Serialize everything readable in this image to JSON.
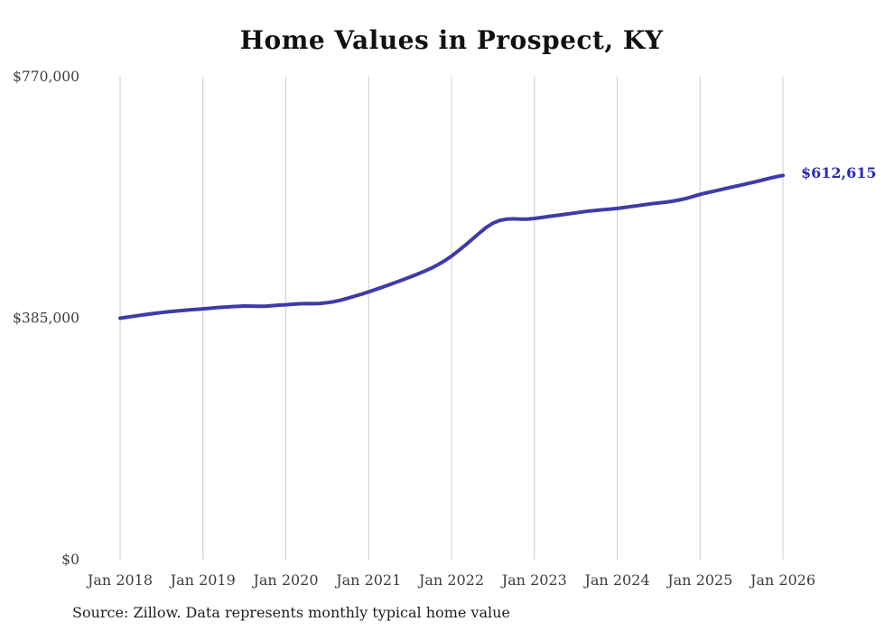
{
  "title": "Home Values in Prospect, KY",
  "end_label": "$612,615",
  "source_note": "Source: Zillow. Data represents monthly typical home value",
  "colors": {
    "line": "#3e3ba8",
    "end_label": "#2c2cb0",
    "grid": "#cccccc",
    "title": "#111111",
    "tick_label": "#3d3d3d",
    "source": "#1f1f1f",
    "background": "#ffffff"
  },
  "chart_data": {
    "type": "line",
    "title": "Home Values in Prospect, KY",
    "xlabel": "",
    "ylabel": "",
    "ylim": [
      0,
      770000
    ],
    "grid": "vertical-only",
    "legend": "none",
    "x_tick_labels": [
      "Jan 2018",
      "Jan 2019",
      "Jan 2020",
      "Jan 2021",
      "Jan 2022",
      "Jan 2023",
      "Jan 2024",
      "Jan 2025",
      "Jan 2026"
    ],
    "months_per_tick": 12,
    "y_ticks": [
      {
        "label": "$0",
        "value": 0
      },
      {
        "label": "$385,000",
        "value": 385000
      },
      {
        "label": "$770,000",
        "value": 770000
      }
    ],
    "series": [
      {
        "name": "Typical home value",
        "unit": "USD",
        "interval": "monthly",
        "start": "Jan 2018",
        "end": "Jan 2026",
        "values": [
          385000,
          386600,
          388200,
          389800,
          391300,
          392700,
          394000,
          395200,
          396300,
          397300,
          398200,
          399100,
          400000,
          400900,
          401800,
          402600,
          403300,
          403900,
          404400,
          404300,
          404000,
          404200,
          405000,
          405800,
          406500,
          407300,
          408000,
          408300,
          408200,
          408600,
          409800,
          411500,
          414000,
          417000,
          420200,
          423500,
          427000,
          430700,
          434500,
          438400,
          442400,
          446500,
          450700,
          455000,
          459500,
          464500,
          470000,
          476500,
          484000,
          492500,
          501500,
          511000,
          520500,
          529500,
          536500,
          541000,
          543000,
          543500,
          543000,
          543000,
          544000,
          545500,
          547000,
          548500,
          550000,
          551500,
          553000,
          554500,
          556000,
          557000,
          558000,
          559000,
          560000,
          561500,
          563000,
          564500,
          566000,
          567500,
          568800,
          570000,
          571500,
          573500,
          576000,
          579200,
          582500,
          585000,
          587500,
          590000,
          592500,
          595000,
          597500,
          600000,
          602500,
          605200,
          608000,
          610500,
          612615
        ]
      }
    ],
    "final_value": 612615,
    "final_value_label": "$612,615"
  }
}
